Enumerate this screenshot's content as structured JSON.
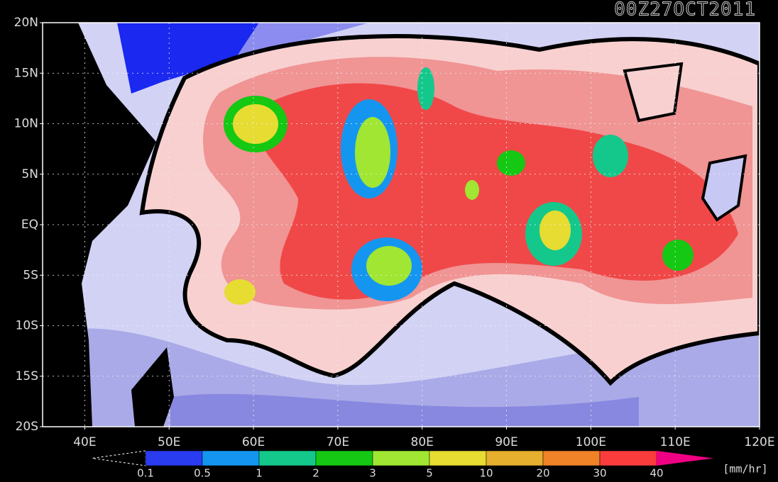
{
  "map": {
    "title": "00Z27OCT2011",
    "lat_labels": [
      "20N",
      "15N",
      "10N",
      "5N",
      "EQ",
      "5S",
      "10S",
      "15S",
      "20S"
    ],
    "lon_labels": [
      "40E",
      "50E",
      "60E",
      "70E",
      "80E",
      "90E",
      "100E",
      "110E",
      "120E"
    ],
    "colorbar": {
      "levels": [
        0.1,
        0.5,
        1,
        2,
        3,
        5,
        10,
        20,
        30,
        40
      ],
      "colors": [
        "#2a3cf0",
        "#1496f0",
        "#14c88c",
        "#14c814",
        "#a0e632",
        "#e6dc32",
        "#e6af2d",
        "#f08228",
        "#fa3c3c"
      ],
      "over_color": "#f00082",
      "unit": "[mm/hr]"
    }
  }
}
